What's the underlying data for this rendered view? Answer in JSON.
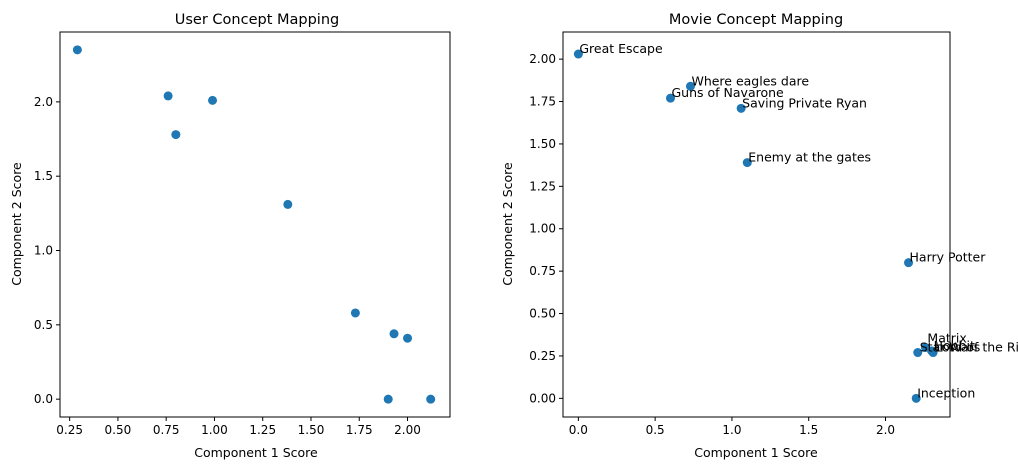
{
  "chart_data": [
    {
      "type": "scatter",
      "title": "User Concept Mapping",
      "xlabel": "Component 1 Score",
      "ylabel": "Component 2 Score",
      "xlim": [
        0.2,
        2.22
      ],
      "ylim": [
        -0.12,
        2.47
      ],
      "xticks": [
        0.25,
        0.5,
        0.75,
        1.0,
        1.25,
        1.5,
        1.75,
        2.0
      ],
      "xtick_labels": [
        "0.25",
        "0.50",
        "0.75",
        "1.00",
        "1.25",
        "1.50",
        "1.75",
        "2.00"
      ],
      "yticks": [
        0.0,
        0.5,
        1.0,
        1.5,
        2.0
      ],
      "ytick_labels": [
        "0.0",
        "0.5",
        "1.0",
        "1.5",
        "2.0"
      ],
      "grid": false,
      "color": "#1f77b4",
      "points": [
        {
          "x": 0.29,
          "y": 2.35
        },
        {
          "x": 0.76,
          "y": 2.04
        },
        {
          "x": 0.8,
          "y": 1.78
        },
        {
          "x": 0.99,
          "y": 2.01
        },
        {
          "x": 1.38,
          "y": 1.31
        },
        {
          "x": 1.73,
          "y": 0.58
        },
        {
          "x": 1.93,
          "y": 0.44
        },
        {
          "x": 2.0,
          "y": 0.41
        },
        {
          "x": 1.9,
          "y": 0.0
        },
        {
          "x": 2.12,
          "y": 0.0
        }
      ]
    },
    {
      "type": "scatter",
      "title": "Movie Concept Mapping",
      "xlabel": "Component 1 Score",
      "ylabel": "Component 2 Score",
      "xlim": [
        -0.1,
        2.42
      ],
      "ylim": [
        -0.11,
        2.16
      ],
      "xticks": [
        0.0,
        0.5,
        1.0,
        1.5,
        2.0
      ],
      "xtick_labels": [
        "0.0",
        "0.5",
        "1.0",
        "1.5",
        "2.0"
      ],
      "yticks": [
        0.0,
        0.25,
        0.5,
        0.75,
        1.0,
        1.25,
        1.5,
        1.75,
        2.0
      ],
      "ytick_labels": [
        "0.00",
        "0.25",
        "0.50",
        "0.75",
        "1.00",
        "1.25",
        "1.50",
        "1.75",
        "2.00"
      ],
      "grid": false,
      "color": "#1f77b4",
      "points": [
        {
          "x": 0.0,
          "y": 2.03,
          "label": "Great Escape"
        },
        {
          "x": 0.73,
          "y": 1.84,
          "label": "Where eagles dare"
        },
        {
          "x": 0.6,
          "y": 1.77,
          "label": "Guns of Navarone"
        },
        {
          "x": 1.06,
          "y": 1.71,
          "label": "Saving Private Ryan"
        },
        {
          "x": 1.1,
          "y": 1.39,
          "label": "Enemy at the gates"
        },
        {
          "x": 2.15,
          "y": 0.8,
          "label": "Harry Potter"
        },
        {
          "x": 2.21,
          "y": 0.27,
          "label": "Star Wars"
        },
        {
          "x": 2.31,
          "y": 0.27,
          "label": "Lord of the Rings"
        },
        {
          "x": 2.26,
          "y": 0.3,
          "label": "Matrix"
        },
        {
          "x": 2.3,
          "y": 0.28,
          "label": "Hobbit"
        },
        {
          "x": 2.2,
          "y": 0.0,
          "label": "Inception"
        }
      ]
    }
  ]
}
